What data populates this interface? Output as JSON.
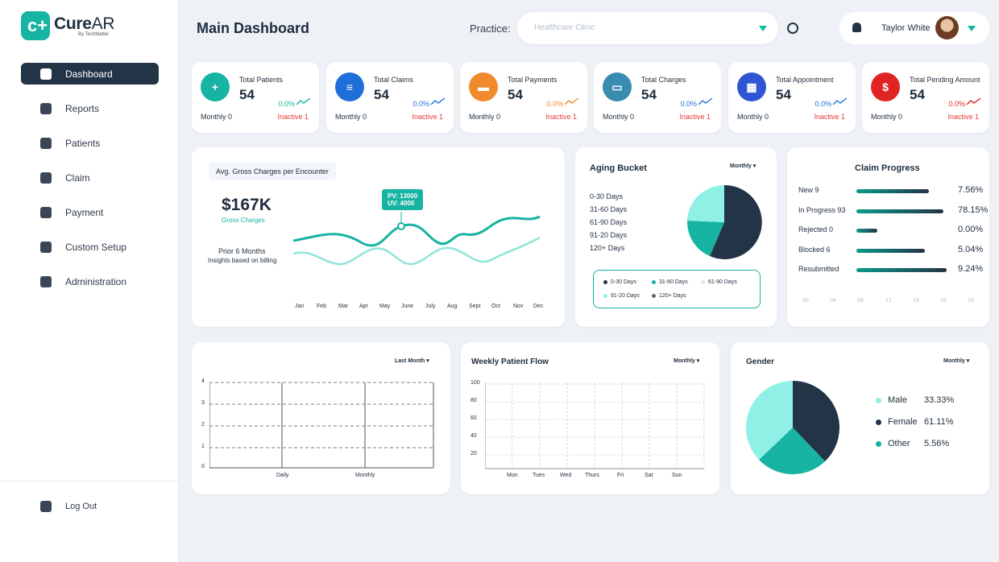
{
  "brand": {
    "name_a": "Cure",
    "name_b": "AR",
    "sub": "By TechMatter",
    "mark": "c+"
  },
  "nav": {
    "items": [
      {
        "label": "Dashboard"
      },
      {
        "label": "Reports"
      },
      {
        "label": "Patients"
      },
      {
        "label": "Claim"
      },
      {
        "label": "Payment"
      },
      {
        "label": "Custom Setup"
      },
      {
        "label": "Administration"
      }
    ],
    "logout": "Log Out"
  },
  "header": {
    "title": "Main Dashboard",
    "practice_label": "Practice:",
    "practice_placeholder": "Healthcare Clinic",
    "user_name": "Taylor White"
  },
  "stats": [
    {
      "title": "Total Patients",
      "value": "54",
      "pct": "0.0%",
      "monthly": "Monthly 0",
      "inactive": "Inactive 1",
      "color": "#17b3a3",
      "icon": "+",
      "pct_color": "#17b3a3"
    },
    {
      "title": "Total Claims",
      "value": "54",
      "pct": "0.0%",
      "monthly": "Monthly 0",
      "inactive": "Inactive 1",
      "color": "#1e6fd9",
      "icon": "≡",
      "pct_color": "#1e6fd9"
    },
    {
      "title": "Total Payments",
      "value": "54",
      "pct": "0.0%",
      "monthly": "Monthly 0",
      "inactive": "Inactive 1",
      "color": "#f08a2c",
      "icon": "▬",
      "pct_color": "#f08a2c"
    },
    {
      "title": "Total Charges",
      "value": "54",
      "pct": "0.0%",
      "monthly": "Monthly 0",
      "inactive": "Inactive 1",
      "color": "#3a8bb0",
      "icon": "▭",
      "pct_color": "#1e6fd9"
    },
    {
      "title": "Total Appointment",
      "value": "54",
      "pct": "0.0%",
      "monthly": "Monthly 0",
      "inactive": "Inactive 1",
      "color": "#2f55d4",
      "icon": "▦",
      "pct_color": "#1e6fd9"
    },
    {
      "title": "Total Pending Amount",
      "value": "54",
      "pct": "0.0%",
      "monthly": "Monthly 0",
      "inactive": "Inactive 1",
      "color": "#e02424",
      "icon": "$",
      "pct_color": "#e02424"
    }
  ],
  "gross": {
    "pill": "Avg. Gross Charges per Encounter",
    "value": "$167K",
    "value_label": "Gross Charges",
    "prior": "Prior 6 Months",
    "insight": "Insights based on billing",
    "tooltip_pv": "PV: 13000",
    "tooltip_uv": "UV: 4000",
    "months": [
      "Jan",
      "Feb",
      "Mar",
      "Apr",
      "May",
      "June",
      "July",
      "Aug",
      "Sept",
      "Oct",
      "Nov",
      "Dec"
    ]
  },
  "aging": {
    "title": "Aging Bucket",
    "filter": "Monthly",
    "rows": [
      "0-30 Days",
      "31-60 Days",
      "61-90 Days",
      "91-20 Days",
      "120+ Days"
    ],
    "legend": [
      {
        "label": "0-30 Days",
        "color": "#243447"
      },
      {
        "label": "31-60 Days",
        "color": "#17b3a3"
      },
      {
        "label": "61-90 Days",
        "color": "#dfe6ee"
      },
      {
        "label": "91-20 Days",
        "color": "#8ff0e6"
      },
      {
        "label": "120+ Days",
        "color": "#5c6b7a"
      }
    ]
  },
  "claim_progress": {
    "title": "Claim Progress",
    "rows": [
      {
        "label": "New 9",
        "pct": "7.56%",
        "fill": 0.77
      },
      {
        "label": "In Progress 93",
        "pct": "78.15%",
        "fill": 0.92
      },
      {
        "label": "Rejected 0",
        "pct": "0.00%",
        "fill": 0.22
      },
      {
        "label": "Blocked 6",
        "pct": "5.04%",
        "fill": 0.73
      },
      {
        "label": "Resubmitted",
        "pct": "9.24%",
        "fill": 0.96
      }
    ],
    "axis": [
      "00",
      "04",
      "08",
      "12",
      "14",
      "16",
      "18"
    ]
  },
  "bar_panel": {
    "filter": "Last Month",
    "y_ticks": [
      "4",
      "3",
      "2",
      "1",
      "0"
    ],
    "x_labels": [
      "Daily",
      "Monthly"
    ]
  },
  "weekly": {
    "title": "Weekly Patient Flow",
    "filter": "Monthly",
    "y_ticks": [
      "100",
      "80",
      "60",
      "40",
      "20"
    ],
    "days": [
      "Mon",
      "Tues",
      "Wed",
      "Thurs",
      "Fri",
      "Sat",
      "Sun"
    ]
  },
  "gender": {
    "title": "Gender",
    "filter": "Monthly",
    "rows": [
      {
        "label": "Male",
        "pct": "33.33%",
        "color": "#8ff0e6"
      },
      {
        "label": "Female",
        "pct": "61.11%",
        "color": "#243447"
      },
      {
        "label": "Other",
        "pct": "5.56%",
        "color": "#17b3a3"
      }
    ]
  }
}
